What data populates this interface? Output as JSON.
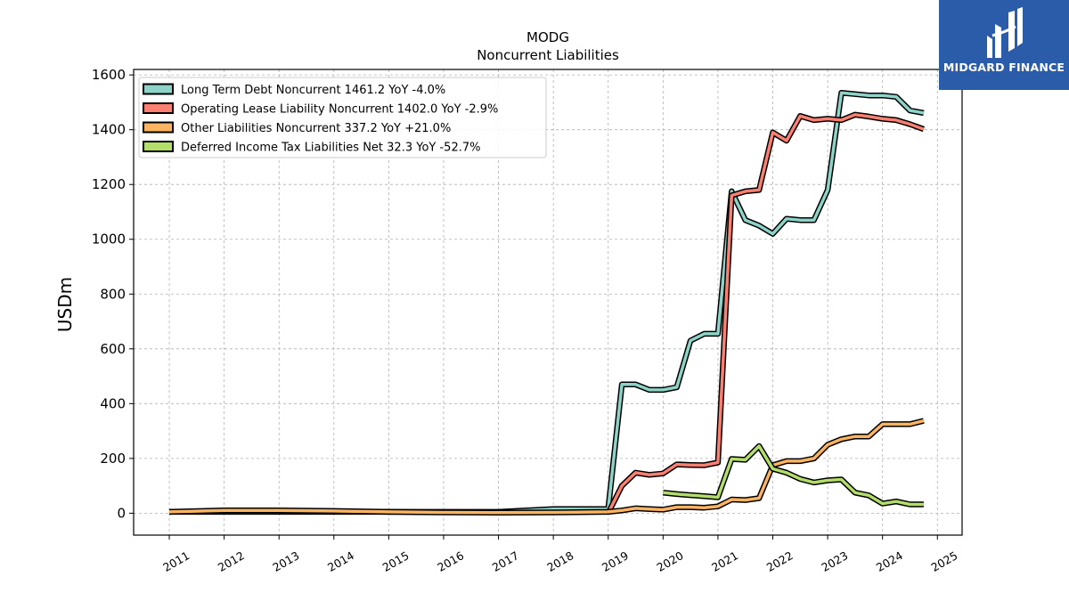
{
  "brand": {
    "name": "MIDGARD FINANCE",
    "color": "#2a5caa"
  },
  "chart_data": {
    "type": "line",
    "title": "MODG",
    "subtitle": "Noncurrent  Liabilities",
    "ylabel": "USDm",
    "xlabel": "",
    "xlim": [
      2010.35,
      2025.45
    ],
    "ylim": [
      -80,
      1620
    ],
    "x_ticks": [
      2011,
      2012,
      2013,
      2014,
      2015,
      2016,
      2017,
      2018,
      2019,
      2020,
      2021,
      2022,
      2023,
      2024,
      2025
    ],
    "y_ticks": [
      0,
      200,
      400,
      600,
      800,
      1000,
      1200,
      1400,
      1600
    ],
    "grid": true,
    "legend_position": "top-left",
    "series": [
      {
        "name": "Long Term Debt Noncurrent  1461.2 YoY -4.0%",
        "color": "#8dd3c7",
        "x": [
          2011.0,
          2012.0,
          2013.0,
          2014.0,
          2015.0,
          2016.0,
          2017.0,
          2018.0,
          2019.0,
          2019.25,
          2019.5,
          2019.75,
          2020.0,
          2020.25,
          2020.5,
          2020.75,
          2021.0,
          2021.25,
          2021.5,
          2021.75,
          2022.0,
          2022.25,
          2022.5,
          2022.75,
          2023.0,
          2023.25,
          2023.5,
          2023.75,
          2024.0,
          2024.25,
          2024.5,
          2024.75
        ],
        "values": [
          5,
          5,
          5,
          5,
          5,
          5,
          5,
          15,
          15,
          470,
          470,
          450,
          450,
          460,
          630,
          655,
          655,
          1175,
          1070,
          1050,
          1020,
          1075,
          1070,
          1070,
          1180,
          1535,
          1530,
          1525,
          1525,
          1520,
          1470,
          1461.2
        ]
      },
      {
        "name": "Operating Lease Liability Noncurrent  1402.0 YoY -2.9%",
        "color": "#fb8072",
        "x": [
          2019.0,
          2019.25,
          2019.5,
          2019.75,
          2020.0,
          2020.25,
          2020.5,
          2020.75,
          2021.0,
          2021.25,
          2021.5,
          2021.75,
          2022.0,
          2022.25,
          2022.5,
          2022.75,
          2023.0,
          2023.25,
          2023.5,
          2023.75,
          2024.0,
          2024.25,
          2024.5,
          2024.75
        ],
        "values": [
          0,
          100,
          148,
          140,
          145,
          178,
          176,
          175,
          185,
          1160,
          1175,
          1180,
          1390,
          1360,
          1450,
          1435,
          1440,
          1435,
          1455,
          1448,
          1440,
          1435,
          1420,
          1402.0
        ]
      },
      {
        "name": "Other Liabilities Noncurrent  337.2 YoY +21.0%",
        "color": "#fdb462",
        "x": [
          2011.0,
          2012.0,
          2013.0,
          2014.0,
          2015.0,
          2016.0,
          2017.0,
          2018.0,
          2019.0,
          2019.25,
          2019.5,
          2019.75,
          2020.0,
          2020.25,
          2020.5,
          2020.75,
          2021.0,
          2021.25,
          2021.5,
          2021.75,
          2022.0,
          2022.25,
          2022.5,
          2022.75,
          2023.0,
          2023.25,
          2023.5,
          2023.75,
          2024.0,
          2024.25,
          2024.5,
          2024.75
        ],
        "values": [
          5,
          10,
          10,
          8,
          5,
          3,
          2,
          3,
          5,
          10,
          18,
          15,
          13,
          22,
          22,
          20,
          25,
          50,
          48,
          55,
          175,
          190,
          190,
          200,
          250,
          270,
          280,
          280,
          325,
          325,
          325,
          337.2
        ]
      },
      {
        "name": "Deferred Income Tax Liabilities Net  32.3 YoY -52.7%",
        "color": "#b3de69",
        "x": [
          2020.0,
          2020.25,
          2020.5,
          2020.75,
          2021.0,
          2021.25,
          2021.5,
          2021.75,
          2022.0,
          2022.25,
          2022.5,
          2022.75,
          2023.0,
          2023.25,
          2023.5,
          2023.75,
          2024.0,
          2024.25,
          2024.5,
          2024.75
        ],
        "values": [
          75,
          70,
          66,
          62,
          58,
          198,
          195,
          245,
          162,
          148,
          125,
          112,
          120,
          123,
          75,
          65,
          35,
          43,
          32,
          32.3
        ]
      }
    ]
  }
}
